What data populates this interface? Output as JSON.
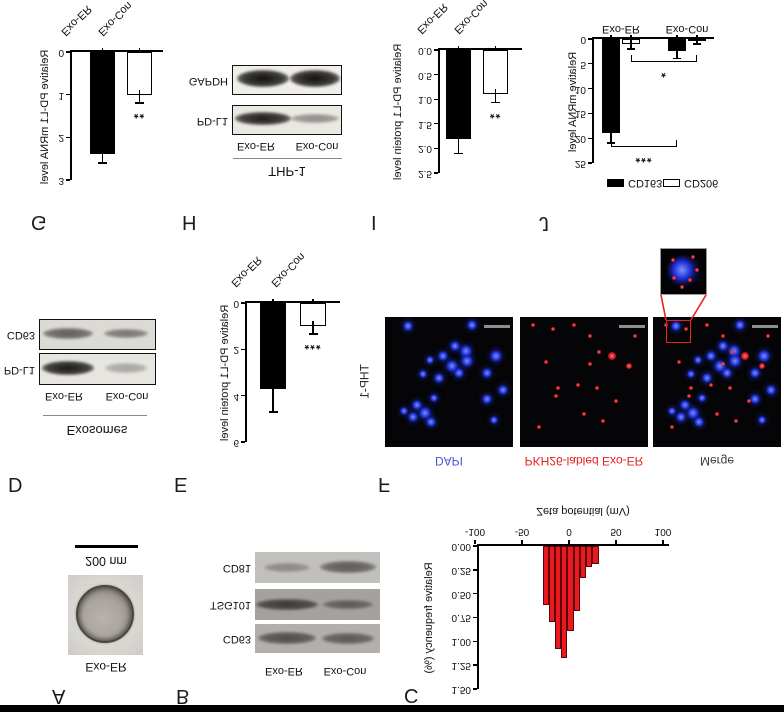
{
  "figure": {
    "panel_letters": [
      "A",
      "B",
      "C",
      "D",
      "E",
      "F",
      "G",
      "H",
      "I",
      "J"
    ],
    "panelA": {
      "treatment": "Exo-ER",
      "scale_bar": "200 nm"
    },
    "panelB": {
      "lanes": [
        "Exo-ER",
        "Exo-Con"
      ],
      "rows": [
        {
          "marker": "CD63",
          "bands": [
            0.62,
            0.55
          ]
        },
        {
          "marker": "TSG101",
          "bands": [
            0.72,
            0.5
          ]
        },
        {
          "marker": "CD81",
          "bands": [
            0.32,
            0.58
          ]
        }
      ]
    },
    "panelD": {
      "title": "Exosomes",
      "lanes": [
        "Exo-ER",
        "Exo-Con"
      ],
      "rows": [
        {
          "marker": "PD-L1",
          "bands": [
            0.97,
            0.3
          ]
        },
        {
          "marker": "CD63",
          "bands": [
            0.62,
            0.5
          ]
        }
      ]
    },
    "panelH": {
      "title": "THP-1",
      "lanes": [
        "Exo-ER",
        "Exo-Con"
      ],
      "rows": [
        {
          "marker": "PD-L1",
          "bands": [
            0.95,
            0.42
          ]
        },
        {
          "marker": "GAPDH",
          "bands": [
            1.0,
            1.0
          ]
        }
      ]
    },
    "panelF": {
      "cell_line": "THP-1",
      "images": [
        {
          "label": "DAPI",
          "label_color": "#4456d8"
        },
        {
          "label": "PKH26-labled Exo-ER",
          "label_color": "#e8201e"
        },
        {
          "label": "Merge",
          "label_color": "#3d3d3d"
        }
      ],
      "nuclei": [
        [
          0.18,
          0.93,
          5
        ],
        [
          0.68,
          0.94,
          5
        ],
        [
          0.55,
          0.78,
          5
        ],
        [
          0.63,
          0.74,
          6
        ],
        [
          0.64,
          0.66,
          6
        ],
        [
          0.45,
          0.7,
          5
        ],
        [
          0.35,
          0.67,
          4
        ],
        [
          0.52,
          0.62,
          6
        ],
        [
          0.58,
          0.57,
          5
        ],
        [
          0.42,
          0.53,
          5
        ],
        [
          0.3,
          0.56,
          4
        ],
        [
          0.87,
          0.7,
          6
        ],
        [
          0.8,
          0.57,
          5
        ],
        [
          0.92,
          0.44,
          5
        ],
        [
          0.8,
          0.37,
          5
        ],
        [
          0.38,
          0.38,
          4
        ],
        [
          0.25,
          0.32,
          5
        ],
        [
          0.31,
          0.26,
          6
        ],
        [
          0.22,
          0.23,
          5
        ],
        [
          0.15,
          0.28,
          4
        ],
        [
          0.36,
          0.19,
          5
        ],
        [
          0.85,
          0.21,
          4
        ]
      ],
      "puncta": [
        [
          0.1,
          0.94,
          2
        ],
        [
          0.26,
          0.91,
          2
        ],
        [
          0.42,
          0.94,
          2
        ],
        [
          0.72,
          0.7,
          4
        ],
        [
          0.62,
          0.73,
          2
        ],
        [
          0.55,
          0.64,
          2
        ],
        [
          0.85,
          0.62,
          3
        ],
        [
          0.3,
          0.45,
          2
        ],
        [
          0.28,
          0.39,
          2
        ],
        [
          0.45,
          0.48,
          2
        ],
        [
          0.6,
          0.45,
          2
        ],
        [
          0.75,
          0.35,
          2
        ],
        [
          0.5,
          0.25,
          2
        ],
        [
          0.65,
          0.2,
          2
        ],
        [
          0.2,
          0.65,
          2
        ],
        [
          0.9,
          0.85,
          2
        ],
        [
          0.15,
          0.15,
          2
        ],
        [
          0.55,
          0.85,
          2
        ]
      ],
      "inset_puncta": [
        [
          0.25,
          0.72,
          2
        ],
        [
          0.68,
          0.78,
          2
        ],
        [
          0.62,
          0.3,
          2
        ],
        [
          0.28,
          0.34,
          2
        ],
        [
          0.76,
          0.52,
          2
        ],
        [
          0.45,
          0.15,
          2
        ]
      ]
    }
  },
  "chart_data": [
    {
      "id": "chart-c",
      "panel": "C",
      "type": "bar",
      "xlabel": "Zeta potential (mV)",
      "ylabel": "Relative frequency (%)",
      "xticks": [
        "-100",
        "-50",
        "0",
        "50",
        "100"
      ],
      "yticks": [
        "0.00",
        "0.25",
        "0.50",
        "0.75",
        "1.00",
        "1.25",
        "1.50"
      ],
      "xlim": [
        -100,
        106
      ],
      "ylim": [
        0,
        1.5
      ],
      "bar_color": "#e8191f",
      "bins_start_mV": -28,
      "bin_width_mV": 6.6,
      "values": [
        0.62,
        0.8,
        1.08,
        1.18,
        0.89,
        0.68,
        0.34,
        0.22,
        0.19
      ]
    },
    {
      "id": "chart-e",
      "panel": "E",
      "type": "bar",
      "ylabel": "Relative PD-L1 protein level",
      "categories": [
        "Exo-ER",
        "Exo-Con"
      ],
      "values": [
        3.7,
        1.0
      ],
      "errors": [
        1.0,
        0.35
      ],
      "fills": [
        "#000000",
        "#ffffff"
      ],
      "yticks": [
        "0",
        "2",
        "4",
        "6"
      ],
      "ylim": [
        0,
        6
      ],
      "significance": [
        {
          "bar": 1,
          "label": "***"
        }
      ]
    },
    {
      "id": "chart-g",
      "panel": "G",
      "type": "bar",
      "ylabel": "Relative PD-L1 mRNA level",
      "categories": [
        "Exo-ER",
        "Exo-Con"
      ],
      "values": [
        2.4,
        1.0
      ],
      "errors": [
        0.2,
        0.2
      ],
      "fills": [
        "#000000",
        "#ffffff"
      ],
      "yticks": [
        "0",
        "1",
        "2",
        "3"
      ],
      "ylim": [
        0,
        3
      ],
      "significance": [
        {
          "bar": 1,
          "label": "**"
        }
      ]
    },
    {
      "id": "chart-i",
      "panel": "I",
      "type": "bar",
      "ylabel": "Relative PD-L1 protein level",
      "categories": [
        "Exo-ER",
        "Exo-Con"
      ],
      "values": [
        1.8,
        0.9
      ],
      "errors": [
        0.3,
        0.17
      ],
      "fills": [
        "#000000",
        "#ffffff"
      ],
      "yticks": [
        "0.0",
        "0.5",
        "1.0",
        "1.5",
        "2.0",
        "2.5"
      ],
      "ylim": [
        0,
        2.5
      ],
      "significance": [
        {
          "bar": 1,
          "label": "**"
        }
      ]
    },
    {
      "id": "chart-j",
      "panel": "J",
      "type": "grouped-bar",
      "ylabel": "Relative mRNA level",
      "categories": [
        "Exo-ER",
        "Exo-Con"
      ],
      "series": [
        {
          "name": "CD163",
          "fill": "#000000",
          "values": [
            19,
            2.5
          ],
          "errors": [
            2,
            1.4
          ]
        },
        {
          "name": "CD206",
          "fill": "#ffffff",
          "values": [
            1,
            0.5
          ],
          "errors": [
            1,
            0.5
          ]
        }
      ],
      "yticks": [
        "0",
        "5",
        "10",
        "15",
        "20",
        "25"
      ],
      "ylim": [
        0,
        25
      ],
      "brackets": [
        {
          "from": [
            0,
            0
          ],
          "to": [
            1,
            0
          ],
          "y": 21.8,
          "label": "***"
        },
        {
          "from": [
            0,
            1
          ],
          "to": [
            1,
            1
          ],
          "y": 4.7,
          "label": "*"
        }
      ],
      "legend": [
        "CD163",
        "CD206"
      ]
    }
  ]
}
